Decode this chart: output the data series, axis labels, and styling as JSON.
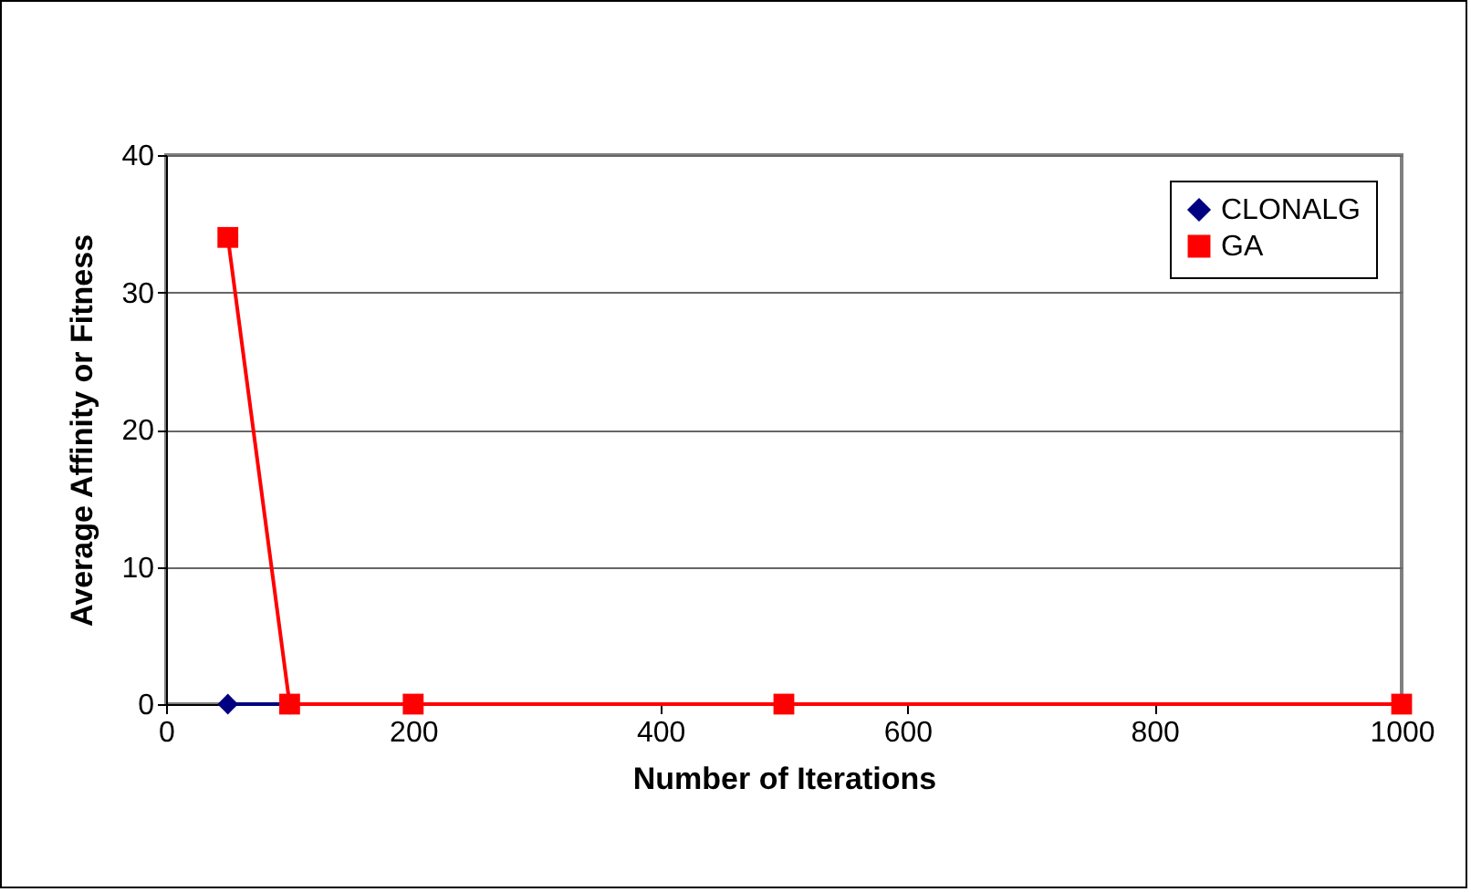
{
  "chart_data": {
    "type": "line",
    "xlabel": "Number of Iterations",
    "ylabel": "Average Affinity or Fitness",
    "x": [
      50,
      100,
      200,
      500,
      1000
    ],
    "series": [
      {
        "name": "CLONALG",
        "color": "#000080",
        "marker": "diamond",
        "values": [
          0,
          0,
          null,
          null,
          null
        ]
      },
      {
        "name": "GA",
        "color": "#ff0000",
        "marker": "square",
        "values": [
          34,
          0,
          0,
          0,
          0
        ]
      }
    ],
    "xlim": [
      0,
      1000
    ],
    "xticks": [
      0,
      200,
      400,
      600,
      800,
      1000
    ],
    "ylim": [
      0,
      40
    ],
    "yticks": [
      0,
      10,
      20,
      30,
      40
    ],
    "grid": "y",
    "legend": "top right",
    "line_style": "solid"
  }
}
